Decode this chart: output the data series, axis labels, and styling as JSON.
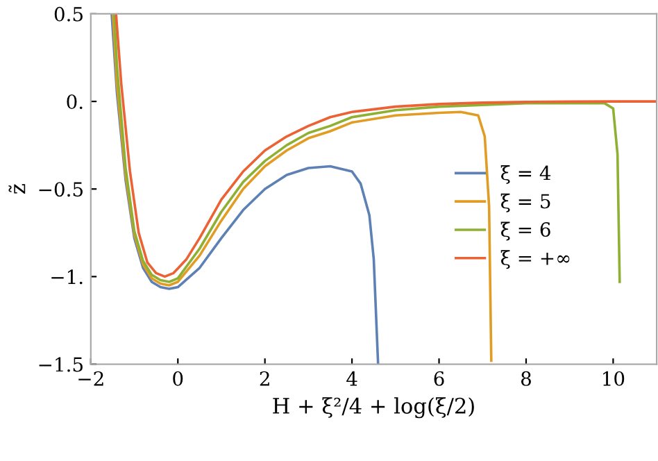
{
  "chart_data": {
    "type": "line",
    "xlabel": "H + ξ²/4 + log(ξ/2)",
    "ylabel": "z̃",
    "xlim": [
      -2,
      11
    ],
    "ylim": [
      -1.5,
      0.5
    ],
    "xticks": [
      {
        "value": -2,
        "label": "−2"
      },
      0,
      2,
      4,
      6,
      8,
      10
    ],
    "yticks": [
      {
        "value": -1.5,
        "label": "−1.5"
      },
      {
        "value": -1,
        "label": "−1."
      },
      {
        "value": -0.5,
        "label": "−0.5"
      },
      {
        "value": 0,
        "label": "0."
      },
      0.5
    ],
    "grid": false,
    "legend": "right",
    "marker": "none",
    "line_style": "solid",
    "series": [
      {
        "name": "ξ = 4",
        "color": "#5e81b5",
        "x": [
          -1.52,
          -1.4,
          -1.2,
          -1.0,
          -0.8,
          -0.6,
          -0.4,
          -0.2,
          0,
          0.5,
          1,
          1.5,
          2,
          2.5,
          3,
          3.5,
          4,
          4.2,
          4.4,
          4.5,
          4.6
        ],
        "values": [
          0.5,
          0.05,
          -0.45,
          -0.78,
          -0.95,
          -1.03,
          -1.06,
          -1.07,
          -1.06,
          -0.95,
          -0.78,
          -0.62,
          -0.5,
          -0.42,
          -0.38,
          -0.37,
          -0.4,
          -0.47,
          -0.65,
          -0.9,
          -1.5
        ]
      },
      {
        "name": "ξ = 5",
        "color": "#e19c24",
        "x": [
          -1.49,
          -1.4,
          -1.2,
          -1.0,
          -0.8,
          -0.6,
          -0.4,
          -0.2,
          0,
          0.5,
          1,
          1.5,
          2,
          2.5,
          3,
          3.5,
          4,
          5,
          6,
          6.5,
          6.9,
          7.05,
          7.15,
          7.2
        ],
        "values": [
          0.5,
          0.1,
          -0.42,
          -0.76,
          -0.93,
          -1.01,
          -1.04,
          -1.05,
          -1.03,
          -0.88,
          -0.68,
          -0.5,
          -0.37,
          -0.28,
          -0.21,
          -0.17,
          -0.12,
          -0.08,
          -0.065,
          -0.06,
          -0.08,
          -0.2,
          -0.6,
          -1.48
        ]
      },
      {
        "name": "ξ = 6",
        "color": "#8fb032",
        "x": [
          -1.46,
          -1.4,
          -1.2,
          -1.0,
          -0.8,
          -0.6,
          -0.4,
          -0.2,
          0,
          0.5,
          1,
          1.5,
          2,
          2.5,
          3,
          3.5,
          4,
          5,
          6,
          7,
          8,
          9,
          9.8,
          10,
          10.1,
          10.15
        ],
        "values": [
          0.5,
          0.2,
          -0.38,
          -0.74,
          -0.91,
          -0.99,
          -1.02,
          -1.03,
          -1.01,
          -0.84,
          -0.63,
          -0.46,
          -0.34,
          -0.25,
          -0.18,
          -0.14,
          -0.09,
          -0.05,
          -0.03,
          -0.02,
          -0.01,
          -0.01,
          -0.01,
          -0.04,
          -0.3,
          -1.03
        ]
      },
      {
        "name": "ξ = +∞",
        "color": "#eb6235",
        "x": [
          -1.42,
          -1.3,
          -1.1,
          -0.9,
          -0.7,
          -0.5,
          -0.3,
          -0.1,
          0.2,
          0.5,
          1,
          1.5,
          2,
          2.5,
          3,
          3.5,
          4,
          5,
          6,
          7,
          8,
          9,
          10,
          11
        ],
        "values": [
          0.5,
          0.1,
          -0.4,
          -0.75,
          -0.92,
          -0.98,
          -1.0,
          -0.98,
          -0.9,
          -0.78,
          -0.56,
          -0.4,
          -0.28,
          -0.2,
          -0.14,
          -0.09,
          -0.06,
          -0.03,
          -0.015,
          -0.007,
          -0.003,
          -0.001,
          0,
          0
        ]
      }
    ]
  }
}
